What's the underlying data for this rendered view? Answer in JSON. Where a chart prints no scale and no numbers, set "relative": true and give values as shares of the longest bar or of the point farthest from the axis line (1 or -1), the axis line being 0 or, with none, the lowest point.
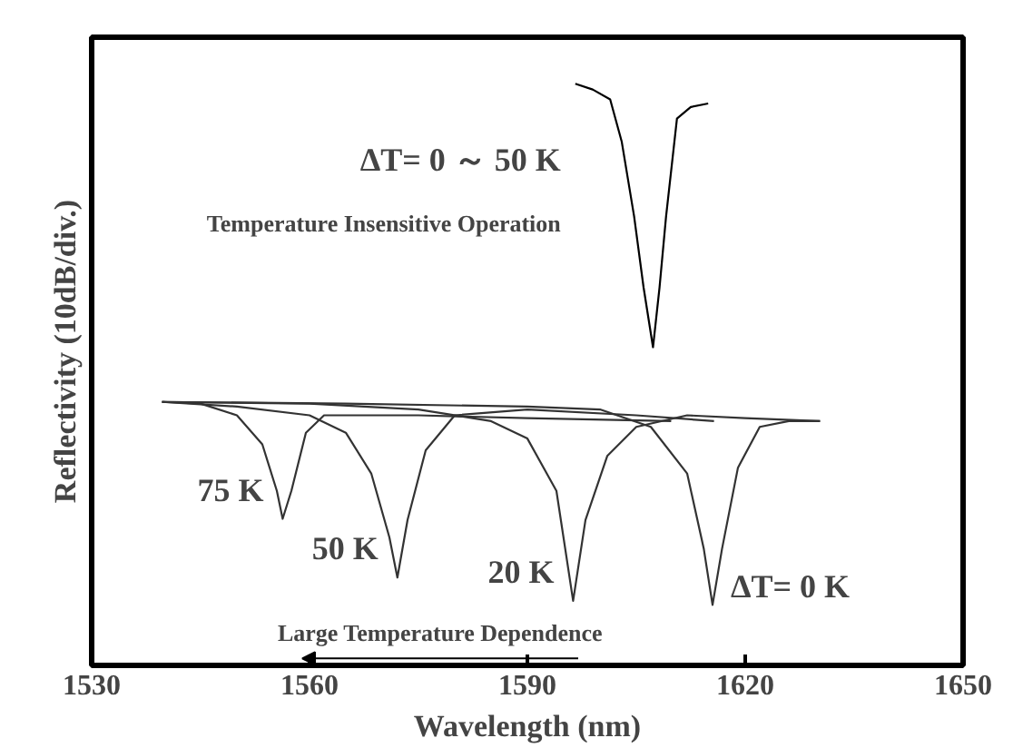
{
  "chart_data": {
    "type": "line",
    "relative": true,
    "xlabel": "Wavelength (nm)",
    "ylabel": "Reflectivity (10dB/div.)",
    "xlim": [
      1530,
      1650
    ],
    "xticks": [
      1530,
      1560,
      1590,
      1620,
      1650
    ],
    "grid": false,
    "marker": "none",
    "line_style": "solid",
    "series": [
      {
        "name": "ΔT= 0 ～ 50 K",
        "color": "#000000",
        "x": [
          1596.6,
          1599.0,
          1601.4,
          1603.0,
          1604.7,
          1606.0,
          1607.3,
          1608.2,
          1609.1,
          1610.6,
          1612.5,
          1614.9
        ],
        "values": [
          1,
          0.99,
          0.973,
          0.9,
          0.772,
          0.65,
          0.547,
          0.65,
          0.772,
          0.94,
          0.96,
          0.966
        ]
      },
      {
        "name": "75  K",
        "color": "#333333",
        "x": [
          1539.7,
          1545.0,
          1550.0,
          1553.5,
          1555.5,
          1556.3,
          1557.5,
          1559.5,
          1562.0,
          1575.0,
          1590.0,
          1609.8
        ],
        "values": [
          0.453,
          0.45,
          0.43,
          0.38,
          0.3,
          0.252,
          0.3,
          0.4,
          0.43,
          0.43,
          0.425,
          0.42
        ]
      },
      {
        "name": "50  K",
        "color": "#333333",
        "x": [
          1539.7,
          1550.0,
          1560.0,
          1565.0,
          1568.5,
          1571.0,
          1572.1,
          1573.5,
          1576.0,
          1580.0,
          1590.0,
          1605.0,
          1615.7
        ],
        "values": [
          0.453,
          0.445,
          0.43,
          0.4,
          0.33,
          0.22,
          0.151,
          0.25,
          0.37,
          0.43,
          0.44,
          0.43,
          0.42
        ]
      },
      {
        "name": "20  K",
        "color": "#333333",
        "x": [
          1539.7,
          1560.0,
          1575.0,
          1585.0,
          1590.0,
          1594.0,
          1596.3,
          1598.0,
          1601.0,
          1605.0,
          1612.0,
          1620.0,
          1630.3
        ],
        "values": [
          0.453,
          0.45,
          0.44,
          0.42,
          0.39,
          0.3,
          0.111,
          0.25,
          0.36,
          0.41,
          0.43,
          0.425,
          0.42
        ]
      },
      {
        "name": "ΔT= 0  K",
        "color": "#333333",
        "x": [
          1539.7,
          1565.0,
          1590.0,
          1600.0,
          1607.0,
          1612.0,
          1614.3,
          1615.5,
          1616.8,
          1619.0,
          1622.0,
          1626.0,
          1630.3
        ],
        "values": [
          0.453,
          0.45,
          0.445,
          0.44,
          0.41,
          0.33,
          0.2,
          0.104,
          0.2,
          0.34,
          0.41,
          0.42,
          0.42
        ]
      }
    ],
    "annotations": [
      "Temperature Insensitive Operation",
      "Large Temperature Dependence"
    ]
  }
}
